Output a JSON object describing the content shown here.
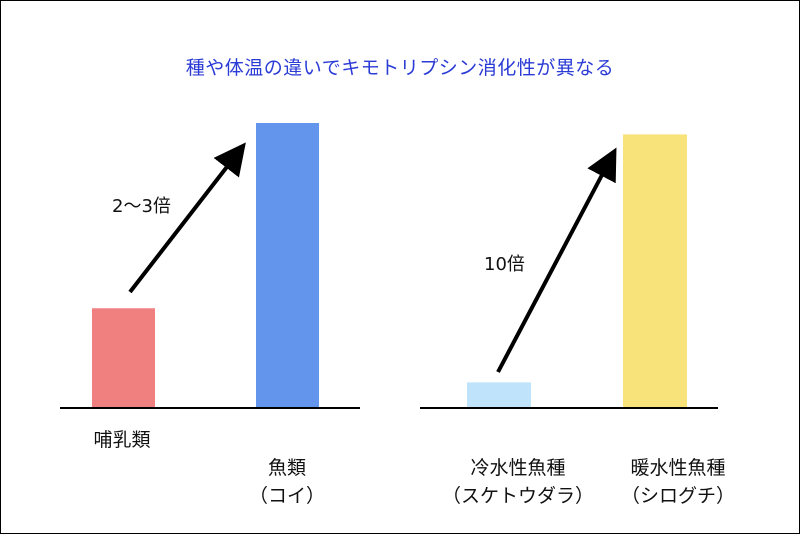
{
  "chart_data": [
    {
      "type": "bar",
      "title": "種や体温の違いでキモトリプシン消化性が異なる",
      "categories": [
        "哺乳類",
        "魚類\n（コイ）"
      ],
      "values": [
        0.35,
        1.0
      ],
      "colors": [
        "#f08080",
        "#6495ed"
      ],
      "annotation": "2～3倍",
      "ylim": [
        0,
        1.1
      ],
      "grid": false,
      "ytick_labels": false
    },
    {
      "type": "bar",
      "categories": [
        "冷水性魚種\n（スケトウダラ）",
        "暖水性魚種\n（シログチ）"
      ],
      "values": [
        0.09,
        0.96
      ],
      "colors": [
        "#bfe3fa",
        "#f8e27a"
      ],
      "annotation": "10倍",
      "ylim": [
        0,
        1.1
      ],
      "grid": false,
      "ytick_labels": false
    }
  ]
}
